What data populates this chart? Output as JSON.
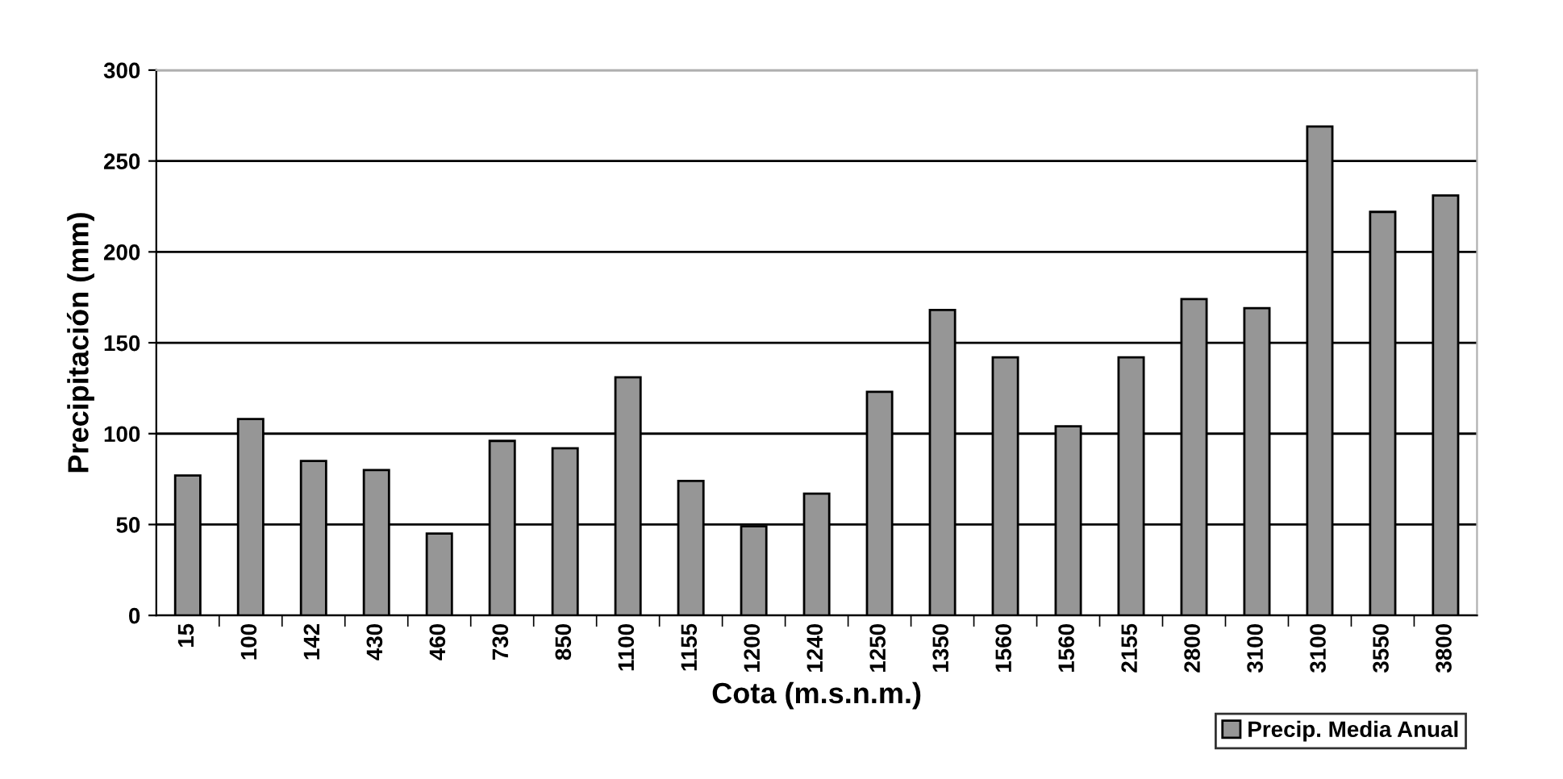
{
  "chart_data": {
    "type": "bar",
    "xlabel": "Cota (m.s.n.m.)",
    "ylabel": "Precipitación (mm)",
    "categories": [
      "15",
      "100",
      "142",
      "430",
      "460",
      "730",
      "850",
      "1100",
      "1155",
      "1200",
      "1240",
      "1250",
      "1350",
      "1560",
      "1560",
      "2155",
      "2800",
      "3100",
      "3100",
      "3550",
      "3800"
    ],
    "series": [
      {
        "name": "Precip. Media Anual",
        "color": "#969696",
        "values": [
          77,
          108,
          85,
          80,
          45,
          96,
          92,
          131,
          74,
          49,
          67,
          123,
          168,
          142,
          104,
          142,
          174,
          169,
          269,
          222,
          231
        ]
      }
    ],
    "ylim": [
      0,
      300
    ],
    "yticks": [
      0,
      50,
      100,
      150,
      200,
      250,
      300
    ],
    "grid": "y",
    "legend": "bottom right"
  }
}
